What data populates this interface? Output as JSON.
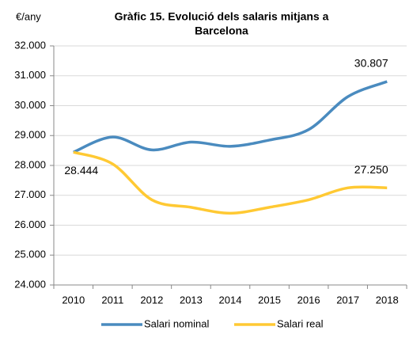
{
  "chart_data": {
    "type": "line",
    "title": [
      "Gràfic 15. Evolució dels salaris mitjans a",
      "Barcelona"
    ],
    "y_label": "€/any",
    "categories": [
      "2010",
      "2011",
      "2012",
      "2013",
      "2014",
      "2015",
      "2016",
      "2017",
      "2018"
    ],
    "series": [
      {
        "name": "Salari nominal",
        "color": "#4a8bbf",
        "values": [
          28444,
          28950,
          28520,
          28780,
          28640,
          28850,
          29200,
          30300,
          30807
        ],
        "value_labels": [
          "28.444",
          null,
          null,
          null,
          null,
          null,
          null,
          null,
          "30.807"
        ]
      },
      {
        "name": "Salari real",
        "color": "#ffc933",
        "values": [
          28444,
          28050,
          26850,
          26600,
          26400,
          26600,
          26850,
          27250,
          27250
        ],
        "value_labels": [
          null,
          null,
          null,
          null,
          null,
          null,
          null,
          null,
          "27.250"
        ]
      }
    ],
    "ylim": [
      24000,
      32000
    ],
    "yticks": [
      {
        "value": 24000,
        "label": "24.000"
      },
      {
        "value": 25000,
        "label": "25.000"
      },
      {
        "value": 26000,
        "label": "26.000"
      },
      {
        "value": 27000,
        "label": "27.000"
      },
      {
        "value": 28000,
        "label": "28.000"
      },
      {
        "value": 29000,
        "label": "29.000"
      },
      {
        "value": 30000,
        "label": "30.000"
      },
      {
        "value": 31000,
        "label": "31.000"
      },
      {
        "value": 32000,
        "label": "32.000"
      }
    ],
    "grid": true,
    "smooth": true,
    "legend": "bottom"
  }
}
